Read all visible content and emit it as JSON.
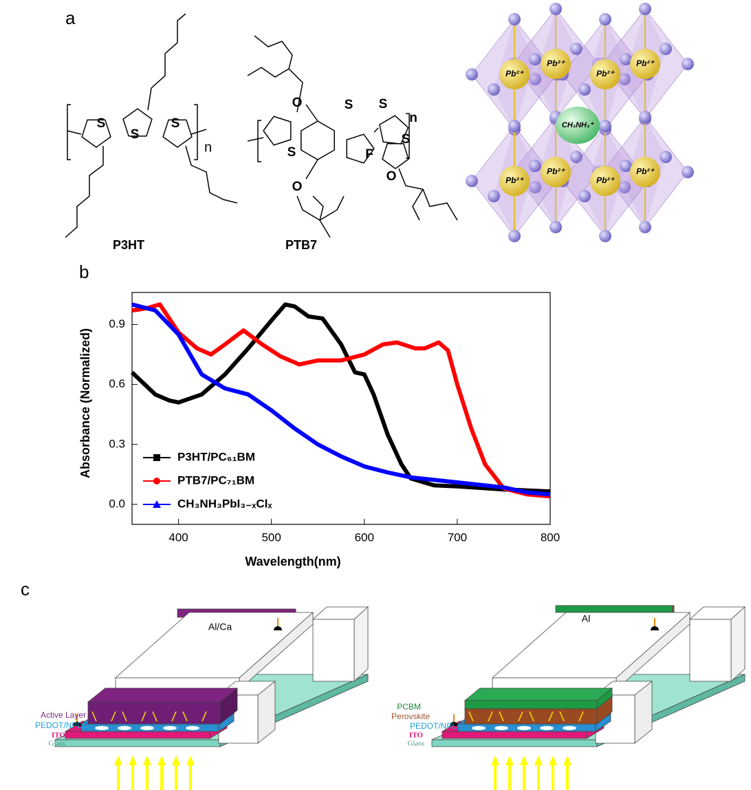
{
  "panel_a": {
    "label": "a",
    "p3ht": {
      "name": "P3HT",
      "atoms": [
        "S",
        "S",
        "S"
      ],
      "n": "n"
    },
    "ptb7": {
      "name": "PTB7",
      "atoms": [
        "O",
        "S",
        "S",
        "S",
        "S",
        "F",
        "O",
        "O"
      ],
      "n": "n"
    },
    "crystal": {
      "cation": "CH₃NH₃⁺",
      "lead": [
        "Pb²⁺",
        "Pb²⁺",
        "Pb²⁺",
        "Pb²⁺",
        "Pb²⁺",
        "Pb²⁺",
        "Pb²⁺",
        "Pb²⁺"
      ]
    }
  },
  "panel_b": {
    "label": "b"
  },
  "chart_data": {
    "type": "line",
    "x_label": "Wavelength(nm)",
    "y_label": "Absorbance (Normalized)",
    "xlim": [
      350,
      800
    ],
    "ylim": [
      -0.1,
      1.06
    ],
    "xticks": [
      400,
      500,
      600,
      700,
      800
    ],
    "yticks": [
      {
        "value": 0,
        "label": "0.0"
      },
      0.3,
      0.6,
      0.9
    ],
    "legend": "lower left",
    "series": [
      {
        "name": "P3HT/PC₆₁BM",
        "color": "#000000",
        "marker": "square",
        "x": [
          350,
          375,
          390,
          400,
          425,
          450,
          475,
          500,
          515,
          525,
          540,
          555,
          575,
          590,
          600,
          610,
          625,
          640,
          650,
          675,
          700,
          750,
          800
        ],
        "values": [
          0.66,
          0.55,
          0.52,
          0.51,
          0.55,
          0.65,
          0.78,
          0.92,
          1.0,
          0.99,
          0.94,
          0.93,
          0.8,
          0.66,
          0.65,
          0.55,
          0.35,
          0.2,
          0.13,
          0.095,
          0.09,
          0.075,
          0.065
        ]
      },
      {
        "name": "PTB7/PC₇₁BM",
        "color": "#ff0000",
        "marker": "circle",
        "x": [
          350,
          365,
          380,
          400,
          420,
          435,
          450,
          470,
          490,
          510,
          530,
          550,
          575,
          600,
          620,
          635,
          655,
          665,
          680,
          690,
          700,
          715,
          730,
          750,
          775,
          800
        ],
        "values": [
          0.97,
          0.98,
          1.0,
          0.86,
          0.78,
          0.75,
          0.8,
          0.87,
          0.8,
          0.74,
          0.7,
          0.72,
          0.72,
          0.75,
          0.8,
          0.81,
          0.78,
          0.78,
          0.81,
          0.77,
          0.6,
          0.38,
          0.2,
          0.08,
          0.05,
          0.04
        ]
      },
      {
        "name": "CH₃NH₃PbI₃₋ₓClₓ",
        "color": "#0000ff",
        "marker": "triangle",
        "x": [
          350,
          375,
          400,
          425,
          450,
          475,
          500,
          525,
          550,
          575,
          600,
          625,
          650,
          700,
          750,
          775,
          800
        ],
        "values": [
          1.0,
          0.97,
          0.85,
          0.65,
          0.58,
          0.55,
          0.47,
          0.38,
          0.3,
          0.24,
          0.19,
          0.16,
          0.135,
          0.11,
          0.085,
          0.06,
          0.05
        ]
      }
    ]
  },
  "panel_c": {
    "label": "c",
    "device_1": {
      "electrode": "Al/Ca",
      "layers": [
        "Active Layer",
        "PEDOT/NPLs",
        "ITO",
        "Glass"
      ]
    },
    "device_2": {
      "electrode": "Al",
      "layers": [
        "PCBM",
        "Perovskite",
        "PEDOT/NPLs",
        "ITO",
        "Glass"
      ]
    }
  }
}
